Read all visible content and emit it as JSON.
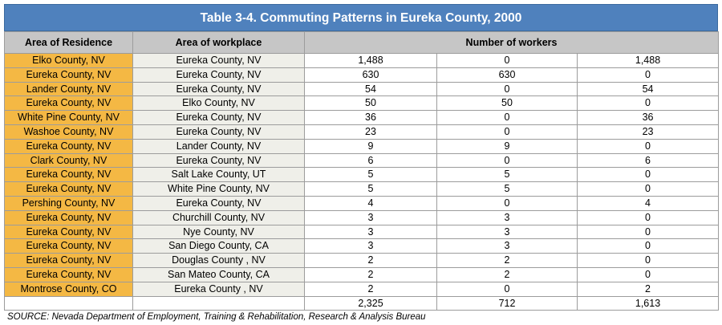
{
  "title": "Table 3-4. Commuting Patterns in Eureka County, 2000",
  "headers": {
    "residence": "Area of Residence",
    "workplace": "Area of workplace",
    "workers": "Number of workers"
  },
  "rows": [
    {
      "residence": "Elko County, NV",
      "workplace": "Eureka County, NV",
      "v1": "1,488",
      "v2": "0",
      "v3": "1,488"
    },
    {
      "residence": "Eureka County, NV",
      "workplace": "Eureka County, NV",
      "v1": "630",
      "v2": "630",
      "v3": "0"
    },
    {
      "residence": "Lander County, NV",
      "workplace": "Eureka County, NV",
      "v1": "54",
      "v2": "0",
      "v3": "54"
    },
    {
      "residence": "Eureka County, NV",
      "workplace": "Elko County, NV",
      "v1": "50",
      "v2": "50",
      "v3": "0"
    },
    {
      "residence": "White Pine County, NV",
      "workplace": "Eureka County, NV",
      "v1": "36",
      "v2": "0",
      "v3": "36"
    },
    {
      "residence": "Washoe County, NV",
      "workplace": "Eureka County, NV",
      "v1": "23",
      "v2": "0",
      "v3": "23"
    },
    {
      "residence": "Eureka County, NV",
      "workplace": "Lander County, NV",
      "v1": "9",
      "v2": "9",
      "v3": "0"
    },
    {
      "residence": "Clark County, NV",
      "workplace": "Eureka County, NV",
      "v1": "6",
      "v2": "0",
      "v3": "6"
    },
    {
      "residence": "Eureka County, NV",
      "workplace": "Salt Lake County, UT",
      "v1": "5",
      "v2": "5",
      "v3": "0"
    },
    {
      "residence": "Eureka County, NV",
      "workplace": "White Pine County, NV",
      "v1": "5",
      "v2": "5",
      "v3": "0"
    },
    {
      "residence": "Pershing County, NV",
      "workplace": "Eureka County, NV",
      "v1": "4",
      "v2": "0",
      "v3": "4"
    },
    {
      "residence": "Eureka County, NV",
      "workplace": "Churchill County, NV",
      "v1": "3",
      "v2": "3",
      "v3": "0"
    },
    {
      "residence": "Eureka County, NV",
      "workplace": "Nye County, NV",
      "v1": "3",
      "v2": "3",
      "v3": "0"
    },
    {
      "residence": "Eureka County, NV",
      "workplace": "San Diego County, CA",
      "v1": "3",
      "v2": "3",
      "v3": "0"
    },
    {
      "residence": "Eureka County, NV",
      "workplace": "Douglas County , NV",
      "v1": "2",
      "v2": "2",
      "v3": "0"
    },
    {
      "residence": "Eureka County, NV",
      "workplace": "San Mateo County, CA",
      "v1": "2",
      "v2": "2",
      "v3": "0"
    },
    {
      "residence": "Montrose County, CO",
      "workplace": "Eureka County , NV",
      "v1": "2",
      "v2": "0",
      "v3": "2"
    }
  ],
  "totals": {
    "v1": "2,325",
    "v2": "712",
    "v3": "1,613"
  },
  "source": "SOURCE: Nevada Department of Employment, Training & Rehabilitation, Research & Analysis Bureau",
  "colors": {
    "title_bg": "#4f81bd",
    "residence_bg": "#f4b844",
    "header_bg": "#c6c6c6",
    "workplace_bg": "#efefe9"
  }
}
